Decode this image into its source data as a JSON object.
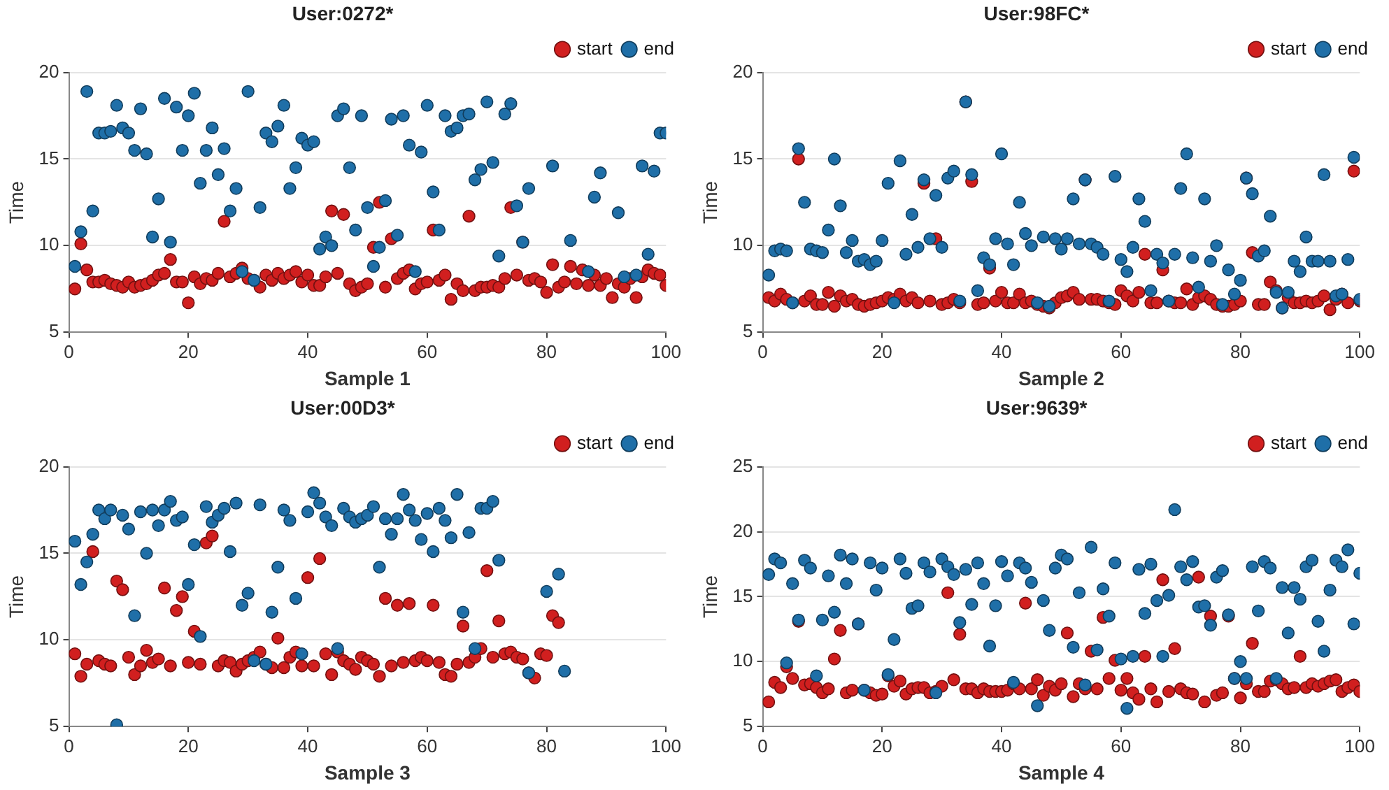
{
  "chart_data": [
    {
      "type": "scatter",
      "title": "User:0272*",
      "xlabel": "Sample 1",
      "ylabel": "Time",
      "xlim": [
        0,
        100
      ],
      "xticks": [
        0,
        20,
        40,
        60,
        80,
        100
      ],
      "ylim": [
        5,
        20
      ],
      "yticks": [
        5,
        10,
        15,
        20
      ],
      "grid": "y",
      "legend": "top right",
      "marker": "circle",
      "x": [
        1,
        2,
        3,
        4,
        5,
        6,
        7,
        8,
        9,
        10,
        11,
        12,
        13,
        14,
        15,
        16,
        17,
        18,
        19,
        20,
        21,
        22,
        23,
        24,
        25,
        26,
        27,
        28,
        29,
        30,
        31,
        32,
        33,
        34,
        35,
        36,
        37,
        38,
        39,
        40,
        41,
        42,
        43,
        44,
        45,
        46,
        47,
        48,
        49,
        50,
        51,
        52,
        53,
        54,
        55,
        56,
        57,
        58,
        59,
        60,
        61,
        62,
        63,
        64,
        65,
        66,
        67,
        68,
        69,
        70,
        71,
        72,
        73,
        74,
        75,
        76,
        77,
        78,
        79,
        80,
        81,
        82,
        83,
        84,
        85,
        86,
        87,
        88,
        89,
        90,
        91,
        92,
        93,
        94,
        95,
        96,
        97,
        98,
        99,
        100
      ],
      "series": [
        {
          "name": "start",
          "color": "#d11f1f",
          "values": [
            7.5,
            10.1,
            8.6,
            7.9,
            7.9,
            8.0,
            7.8,
            7.7,
            7.6,
            7.9,
            7.6,
            7.7,
            7.8,
            8.0,
            8.3,
            8.4,
            9.2,
            7.9,
            7.9,
            6.7,
            8.2,
            7.8,
            8.1,
            8.0,
            8.4,
            11.4,
            8.2,
            8.4,
            8.7,
            8.1,
            8.0,
            7.6,
            8.3,
            8.0,
            8.4,
            8.1,
            8.3,
            8.5,
            7.9,
            8.3,
            7.7,
            7.7,
            8.2,
            12.0,
            8.4,
            11.8,
            7.8,
            7.4,
            7.6,
            7.8,
            9.9,
            12.5,
            7.6,
            10.4,
            8.1,
            8.4,
            8.6,
            7.5,
            7.8,
            7.9,
            10.9,
            8.0,
            8.3,
            6.9,
            7.8,
            7.4,
            11.7,
            7.4,
            7.6,
            7.6,
            7.7,
            7.6,
            8.1,
            12.2,
            8.3,
            10.2,
            8.0,
            8.1,
            7.9,
            7.3,
            8.9,
            7.6,
            7.9,
            8.8,
            7.8,
            8.6,
            7.7,
            8.3,
            7.7,
            8.1,
            7.0,
            7.8,
            7.6,
            8.1,
            7.0,
            8.2,
            8.6,
            8.4,
            8.3,
            7.7
          ]
        },
        {
          "name": "end",
          "color": "#1f6fa8",
          "values": [
            8.8,
            10.8,
            18.9,
            12.0,
            16.5,
            16.5,
            16.6,
            18.1,
            16.8,
            16.5,
            15.5,
            17.9,
            15.3,
            10.5,
            12.7,
            18.5,
            10.2,
            18.0,
            15.5,
            17.5,
            18.8,
            13.6,
            15.5,
            16.8,
            14.1,
            15.6,
            12.0,
            13.3,
            8.5,
            18.9,
            8.0,
            12.2,
            16.5,
            16.0,
            16.9,
            18.1,
            13.3,
            14.5,
            16.2,
            15.8,
            16.0,
            9.8,
            10.5,
            10.0,
            17.5,
            17.9,
            14.5,
            10.9,
            17.5,
            12.2,
            8.8,
            9.9,
            12.6,
            17.3,
            10.6,
            17.5,
            15.8,
            8.5,
            15.4,
            18.1,
            13.1,
            10.9,
            17.5,
            16.6,
            16.8,
            17.5,
            17.6,
            13.8,
            14.4,
            18.3,
            14.8,
            9.4,
            17.6,
            18.2,
            12.3,
            10.2,
            13.3,
            null,
            null,
            null,
            14.6,
            null,
            null,
            10.3,
            null,
            null,
            8.5,
            12.8,
            14.2,
            null,
            null,
            11.9,
            8.2,
            null,
            8.3,
            14.6,
            9.5,
            14.3,
            16.5,
            16.5
          ]
        }
      ]
    },
    {
      "type": "scatter",
      "title": "User:98FC*",
      "xlabel": "Sample 2",
      "ylabel": "Time",
      "xlim": [
        0,
        100
      ],
      "xticks": [
        0,
        20,
        40,
        60,
        80,
        100
      ],
      "ylim": [
        5,
        20
      ],
      "yticks": [
        5,
        10,
        15,
        20
      ],
      "grid": "y",
      "legend": "top right",
      "marker": "circle",
      "x": [
        1,
        2,
        3,
        4,
        5,
        6,
        7,
        8,
        9,
        10,
        11,
        12,
        13,
        14,
        15,
        16,
        17,
        18,
        19,
        20,
        21,
        22,
        23,
        24,
        25,
        26,
        27,
        28,
        29,
        30,
        31,
        32,
        33,
        34,
        35,
        36,
        37,
        38,
        39,
        40,
        41,
        42,
        43,
        44,
        45,
        46,
        47,
        48,
        49,
        50,
        51,
        52,
        53,
        54,
        55,
        56,
        57,
        58,
        59,
        60,
        61,
        62,
        63,
        64,
        65,
        66,
        67,
        68,
        69,
        70,
        71,
        72,
        73,
        74,
        75,
        76,
        77,
        78,
        79,
        80,
        81,
        82,
        83,
        84,
        85,
        86,
        87,
        88,
        89,
        90,
        91,
        92,
        93,
        94,
        95,
        96,
        97,
        98,
        99,
        100
      ],
      "series": [
        {
          "name": "start",
          "color": "#d11f1f",
          "values": [
            7.0,
            6.8,
            7.2,
            6.9,
            6.7,
            15.0,
            6.8,
            7.1,
            6.6,
            6.6,
            7.3,
            6.5,
            7.1,
            6.8,
            6.9,
            6.6,
            6.5,
            6.6,
            6.7,
            6.8,
            7.0,
            6.9,
            7.2,
            6.8,
            7.0,
            6.7,
            13.6,
            6.8,
            10.4,
            6.6,
            6.7,
            6.9,
            6.7,
            18.3,
            13.7,
            6.6,
            6.7,
            8.7,
            6.8,
            7.3,
            6.7,
            6.7,
            7.2,
            6.7,
            6.8,
            6.6,
            6.5,
            6.4,
            6.7,
            7.0,
            7.1,
            7.3,
            6.9,
            13.8,
            6.9,
            6.9,
            6.8,
            6.7,
            6.6,
            7.4,
            7.1,
            6.8,
            7.3,
            9.5,
            6.7,
            6.7,
            8.6,
            6.8,
            6.7,
            6.7,
            7.5,
            6.6,
            7.0,
            7.1,
            6.9,
            6.6,
            6.5,
            6.5,
            6.6,
            6.8,
            13.9,
            9.6,
            6.6,
            6.6,
            7.9,
            7.4,
            6.4,
            7.0,
            6.7,
            6.7,
            6.8,
            6.7,
            6.8,
            7.1,
            6.3,
            6.9,
            7.2,
            6.7,
            14.3,
            6.8
          ]
        },
        {
          "name": "end",
          "color": "#1f6fa8",
          "values": [
            8.3,
            9.7,
            9.8,
            9.7,
            6.7,
            15.6,
            12.5,
            9.8,
            9.7,
            9.6,
            10.9,
            15.0,
            12.3,
            9.6,
            10.3,
            9.1,
            9.2,
            8.9,
            9.1,
            10.3,
            13.6,
            6.7,
            14.9,
            9.5,
            11.8,
            9.9,
            13.8,
            10.4,
            12.9,
            9.9,
            13.9,
            14.3,
            6.8,
            18.3,
            14.1,
            7.4,
            9.3,
            8.9,
            10.4,
            15.3,
            10.1,
            8.9,
            12.5,
            10.7,
            10.0,
            6.7,
            10.5,
            6.5,
            10.4,
            9.8,
            10.4,
            12.7,
            10.1,
            13.8,
            10.1,
            9.9,
            9.5,
            6.8,
            14.0,
            9.2,
            8.5,
            9.9,
            12.7,
            11.4,
            7.4,
            9.5,
            9.0,
            6.8,
            9.5,
            13.3,
            15.3,
            9.3,
            7.6,
            12.7,
            9.1,
            10.0,
            6.6,
            8.6,
            7.2,
            8.0,
            13.9,
            13.0,
            9.4,
            9.7,
            11.7,
            7.3,
            6.4,
            7.3,
            9.1,
            8.5,
            10.5,
            9.1,
            9.1,
            14.1,
            9.1,
            7.1,
            7.2,
            9.2,
            15.1,
            6.9
          ]
        }
      ]
    },
    {
      "type": "scatter",
      "title": "User:00D3*",
      "xlabel": "Sample 3",
      "ylabel": "Time",
      "xlim": [
        0,
        100
      ],
      "xticks": [
        0,
        20,
        40,
        60,
        80,
        100
      ],
      "ylim": [
        5,
        20
      ],
      "yticks": [
        5,
        10,
        15,
        20
      ],
      "grid": "y",
      "legend": "top right",
      "marker": "circle",
      "x": [
        1,
        2,
        3,
        4,
        5,
        6,
        7,
        8,
        9,
        10,
        11,
        12,
        13,
        14,
        15,
        16,
        17,
        18,
        19,
        20,
        21,
        22,
        23,
        24,
        25,
        26,
        27,
        28,
        29,
        30,
        31,
        32,
        33,
        34,
        35,
        36,
        37,
        38,
        39,
        40,
        41,
        42,
        43,
        44,
        45,
        46,
        47,
        48,
        49,
        50,
        51,
        52,
        53,
        54,
        55,
        56,
        57,
        58,
        59,
        60,
        61,
        62,
        63,
        64,
        65,
        66,
        67,
        68,
        69,
        70,
        71,
        72,
        73,
        74,
        75,
        76,
        77,
        78,
        79,
        80,
        81,
        82,
        83
      ],
      "series": [
        {
          "name": "start",
          "color": "#d11f1f",
          "values": [
            9.2,
            7.9,
            8.6,
            15.1,
            8.8,
            8.6,
            8.5,
            13.4,
            12.9,
            9.0,
            8.0,
            8.5,
            9.4,
            8.7,
            8.9,
            13.0,
            8.5,
            11.7,
            12.5,
            8.7,
            10.5,
            8.6,
            15.6,
            16.0,
            8.5,
            8.8,
            8.7,
            8.2,
            8.6,
            8.8,
            9.0,
            9.3,
            8.6,
            8.4,
            10.1,
            8.4,
            9.0,
            9.3,
            8.5,
            13.6,
            8.5,
            14.7,
            9.2,
            8.0,
            9.3,
            8.8,
            8.6,
            8.3,
            9.0,
            8.8,
            8.6,
            7.9,
            12.4,
            8.5,
            12.0,
            8.7,
            12.1,
            8.8,
            9.0,
            8.8,
            12.0,
            8.7,
            8.0,
            7.9,
            8.6,
            10.8,
            8.7,
            9.0,
            9.5,
            14.0,
            9.0,
            11.1,
            9.2,
            9.3,
            9.0,
            8.9,
            8.1,
            7.8,
            9.2,
            9.1,
            11.4,
            11.0,
            null
          ]
        },
        {
          "name": "end",
          "color": "#1f6fa8",
          "values": [
            15.7,
            13.2,
            14.5,
            16.1,
            17.5,
            17.0,
            17.5,
            5.1,
            17.2,
            16.4,
            11.4,
            17.4,
            15.0,
            17.5,
            16.6,
            17.5,
            18.0,
            16.9,
            17.1,
            13.2,
            15.5,
            10.2,
            17.7,
            16.8,
            17.2,
            17.6,
            15.1,
            17.9,
            12.0,
            12.7,
            8.8,
            17.8,
            8.6,
            11.6,
            14.2,
            17.5,
            16.9,
            12.4,
            9.2,
            17.4,
            18.5,
            17.9,
            17.1,
            16.6,
            9.5,
            17.6,
            17.1,
            16.8,
            17.0,
            17.2,
            17.7,
            14.2,
            17.0,
            16.1,
            17.0,
            18.4,
            17.5,
            16.9,
            15.8,
            17.3,
            15.1,
            17.6,
            16.9,
            15.9,
            18.4,
            11.6,
            16.2,
            9.5,
            17.6,
            17.6,
            18.0,
            14.6,
            null,
            null,
            null,
            null,
            8.1,
            null,
            null,
            12.8,
            null,
            13.8,
            8.2
          ]
        }
      ]
    },
    {
      "type": "scatter",
      "title": "User:9639*",
      "xlabel": "Sample 4",
      "ylabel": "Time",
      "xlim": [
        0,
        100
      ],
      "xticks": [
        0,
        20,
        40,
        60,
        80,
        100
      ],
      "ylim": [
        5,
        25
      ],
      "yticks": [
        5,
        10,
        15,
        20,
        25
      ],
      "grid": "y",
      "legend": "top right",
      "marker": "circle",
      "x": [
        1,
        2,
        3,
        4,
        5,
        6,
        7,
        8,
        9,
        10,
        11,
        12,
        13,
        14,
        15,
        16,
        17,
        18,
        19,
        20,
        21,
        22,
        23,
        24,
        25,
        26,
        27,
        28,
        29,
        30,
        31,
        32,
        33,
        34,
        35,
        36,
        37,
        38,
        39,
        40,
        41,
        42,
        43,
        44,
        45,
        46,
        47,
        48,
        49,
        50,
        51,
        52,
        53,
        54,
        55,
        56,
        57,
        58,
        59,
        60,
        61,
        62,
        63,
        64,
        65,
        66,
        67,
        68,
        69,
        70,
        71,
        72,
        73,
        74,
        75,
        76,
        77,
        78,
        79,
        80,
        81,
        82,
        83,
        84,
        85,
        86,
        87,
        88,
        89,
        90,
        91,
        92,
        93,
        94,
        95,
        96,
        97,
        98,
        99,
        100
      ],
      "series": [
        {
          "name": "start",
          "color": "#d11f1f",
          "values": [
            6.9,
            8.4,
            8.0,
            9.6,
            8.7,
            13.1,
            8.2,
            8.3,
            8.0,
            7.6,
            7.9,
            10.2,
            12.4,
            7.6,
            7.8,
            12.9,
            7.8,
            7.6,
            7.4,
            7.5,
            8.9,
            8.1,
            8.5,
            7.5,
            7.9,
            8.0,
            8.0,
            7.6,
            7.7,
            8.1,
            15.3,
            8.6,
            12.1,
            7.9,
            7.9,
            7.6,
            7.9,
            7.7,
            7.7,
            7.7,
            7.8,
            8.3,
            7.9,
            14.5,
            7.9,
            8.6,
            7.4,
            8.1,
            7.8,
            8.3,
            12.2,
            7.3,
            8.3,
            7.9,
            10.8,
            7.9,
            13.4,
            8.7,
            10.1,
            7.8,
            8.7,
            7.6,
            7.1,
            10.4,
            7.9,
            6.9,
            16.3,
            7.7,
            11.0,
            7.9,
            7.6,
            7.5,
            16.5,
            6.9,
            13.5,
            7.4,
            7.6,
            13.5,
            8.7,
            7.2,
            8.3,
            11.4,
            7.7,
            7.7,
            8.5,
            8.6,
            8.3,
            7.9,
            8.0,
            10.4,
            8.0,
            8.3,
            8.1,
            8.3,
            8.5,
            8.6,
            7.7,
            8.0,
            8.2,
            7.7
          ]
        },
        {
          "name": "end",
          "color": "#1f6fa8",
          "values": [
            16.7,
            17.9,
            17.6,
            9.9,
            16.0,
            13.2,
            17.8,
            17.2,
            8.9,
            13.2,
            16.6,
            13.8,
            18.2,
            16.0,
            17.9,
            12.9,
            7.8,
            17.6,
            15.5,
            17.2,
            9.0,
            11.7,
            17.9,
            16.8,
            14.1,
            14.3,
            17.6,
            16.9,
            7.6,
            17.9,
            17.3,
            16.7,
            13.0,
            17.1,
            14.4,
            17.6,
            16.0,
            11.2,
            14.3,
            17.7,
            16.6,
            8.4,
            17.6,
            17.2,
            16.1,
            6.6,
            14.7,
            12.4,
            17.2,
            18.2,
            17.9,
            11.1,
            15.3,
            8.2,
            18.8,
            10.9,
            15.6,
            13.5,
            17.6,
            10.2,
            6.4,
            10.4,
            17.1,
            13.7,
            17.5,
            14.7,
            10.4,
            15.1,
            21.7,
            17.3,
            16.3,
            17.7,
            14.2,
            14.3,
            12.8,
            16.5,
            17.0,
            13.6,
            8.7,
            10.0,
            8.7,
            17.3,
            13.9,
            17.7,
            17.2,
            8.7,
            15.7,
            12.2,
            15.7,
            14.8,
            17.3,
            17.8,
            13.1,
            10.8,
            15.5,
            17.8,
            17.3,
            18.6,
            12.9,
            16.8
          ]
        }
      ]
    }
  ]
}
